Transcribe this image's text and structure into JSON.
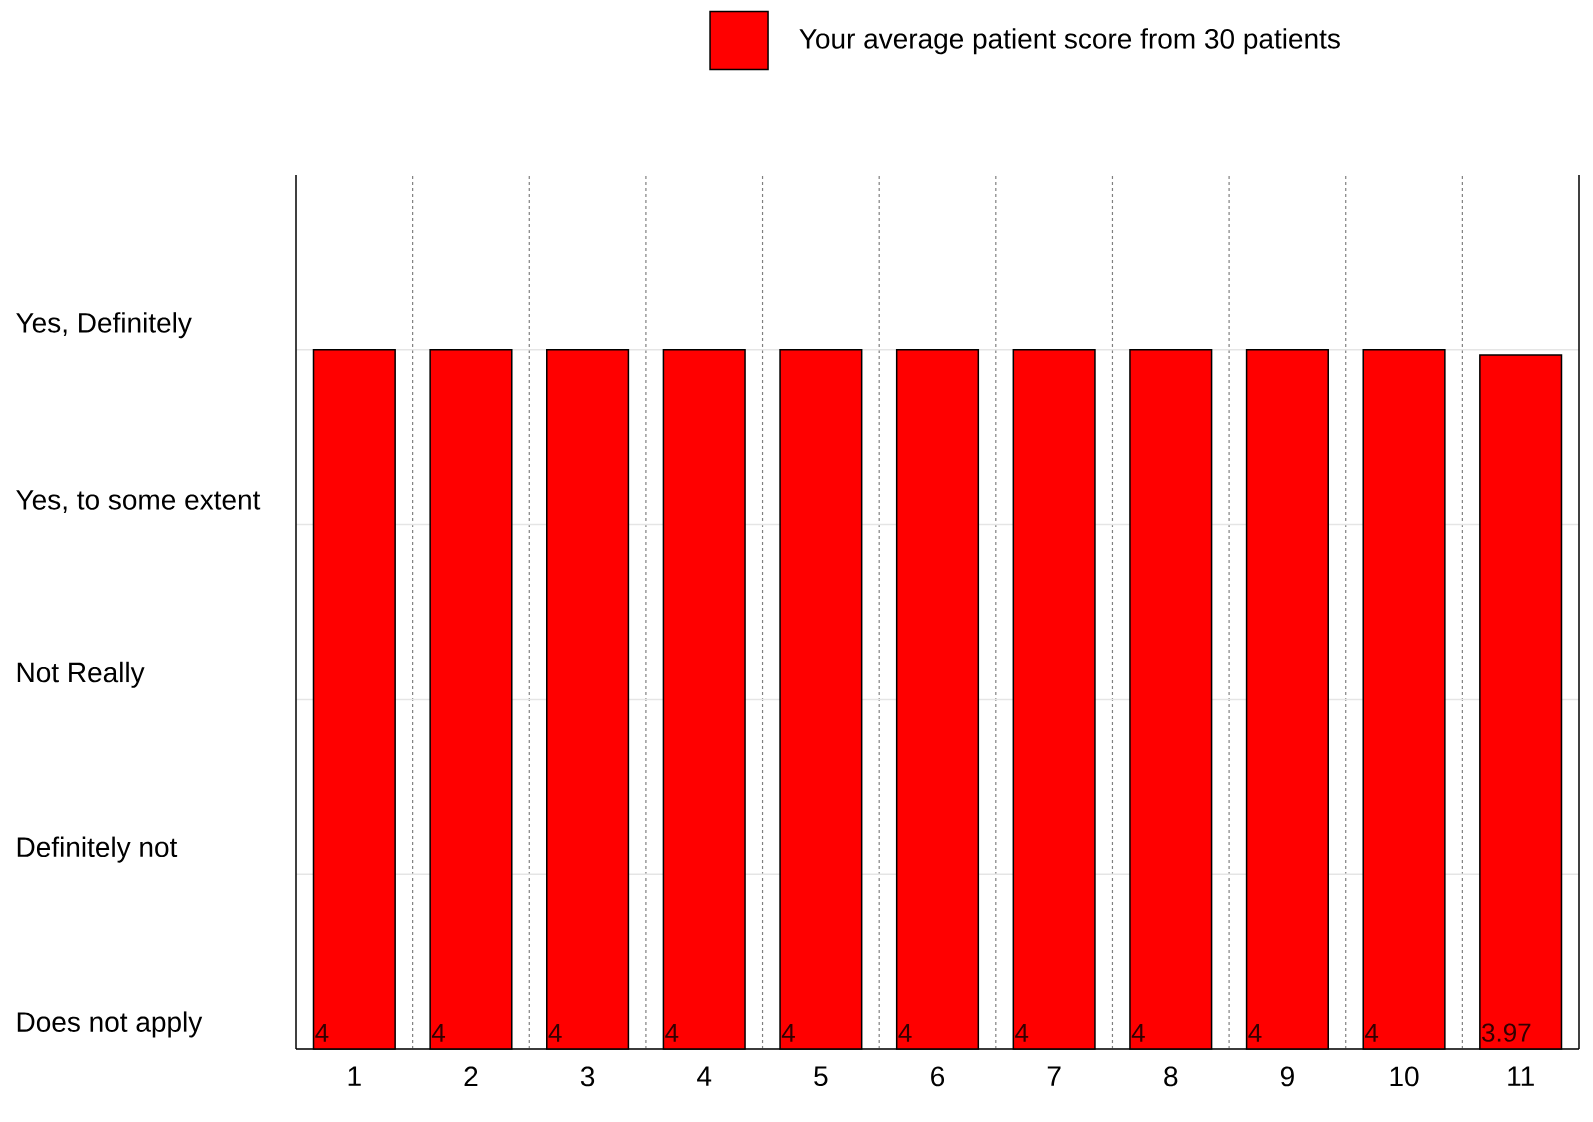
{
  "chart_data": {
    "type": "bar",
    "categories": [
      "1",
      "2",
      "3",
      "4",
      "5",
      "6",
      "7",
      "8",
      "9",
      "10",
      "11"
    ],
    "series": [
      {
        "name": "Your average patient score from 30 patients",
        "color": "#ff0000",
        "values": [
          4,
          4,
          4,
          4,
          4,
          4,
          4,
          4,
          4,
          4,
          3.97
        ]
      }
    ],
    "annotations": [
      "Yes, Definitely",
      "Yes, to some extent",
      "Not Really",
      "Definitely not",
      "Does not apply"
    ],
    "data_labels": true,
    "grid": true,
    "legend": "top"
  }
}
